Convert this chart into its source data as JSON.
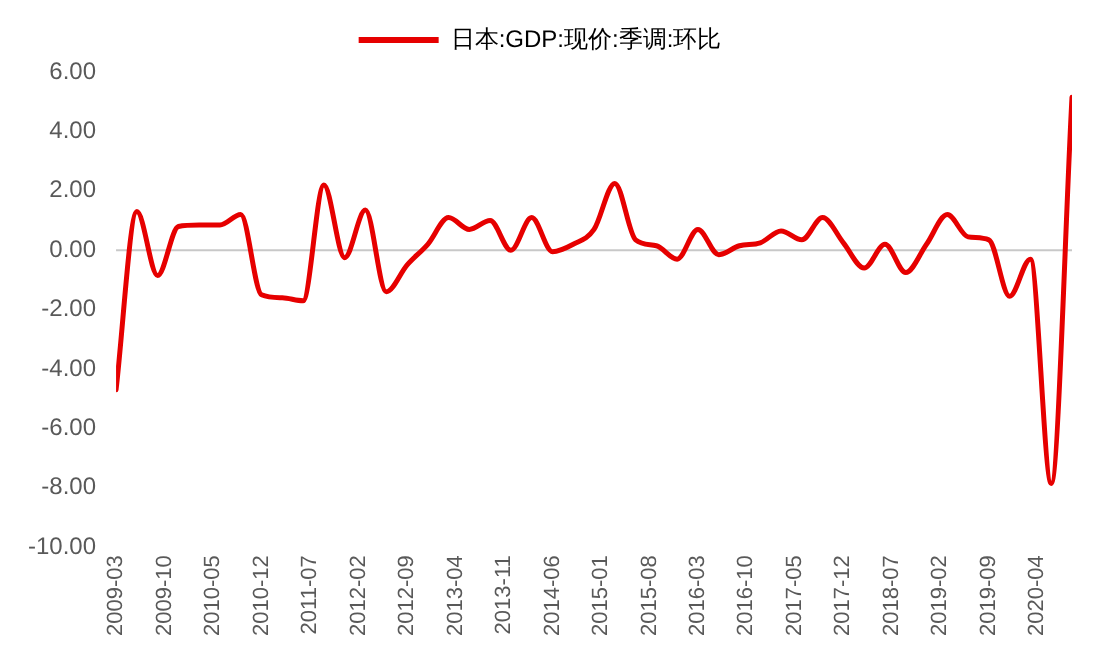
{
  "chart_data": {
    "type": "line",
    "legend": "top",
    "ref_lines": [
      {
        "axis": "y",
        "value": 0,
        "color": "#c8c8c8"
      }
    ],
    "grid": false,
    "marker": "none",
    "line_style": "solid",
    "x": [
      "2009-03",
      "2009-06",
      "2009-09",
      "2009-12",
      "2010-03",
      "2010-06",
      "2010-09",
      "2010-12",
      "2011-03",
      "2011-06",
      "2011-09",
      "2011-12",
      "2012-03",
      "2012-06",
      "2012-09",
      "2012-12",
      "2013-03",
      "2013-06",
      "2013-09",
      "2013-12",
      "2014-03",
      "2014-06",
      "2014-09",
      "2014-12",
      "2015-03",
      "2015-06",
      "2015-09",
      "2015-12",
      "2016-03",
      "2016-06",
      "2016-09",
      "2016-12",
      "2017-03",
      "2017-06",
      "2017-09",
      "2017-12",
      "2018-03",
      "2018-06",
      "2018-09",
      "2018-12",
      "2019-03",
      "2019-06",
      "2019-09",
      "2019-12",
      "2020-03",
      "2020-06",
      "2020-09"
    ],
    "series": [
      {
        "name": "日本:GDP:现价:季调:环比",
        "color": "#e60000",
        "values": [
          -4.7,
          1.3,
          -0.85,
          0.8,
          0.85,
          0.85,
          1.2,
          -1.5,
          -1.6,
          -1.7,
          2.2,
          -0.25,
          1.35,
          -1.4,
          -0.5,
          0.2,
          1.1,
          0.7,
          1.0,
          0.0,
          1.1,
          -0.05,
          0.2,
          0.7,
          2.25,
          0.35,
          0.15,
          -0.3,
          0.7,
          -0.15,
          0.15,
          0.25,
          0.65,
          0.35,
          1.1,
          0.25,
          -0.6,
          0.2,
          -0.75,
          0.2,
          1.2,
          0.45,
          0.35,
          -1.55,
          -0.3,
          -7.85,
          5.15
        ]
      }
    ],
    "xlim": [
      "2009-03",
      "2020-09"
    ],
    "xticks": [
      "2009-03",
      "2009-10",
      "2010-05",
      "2010-12",
      "2011-07",
      "2012-02",
      "2012-09",
      "2013-04",
      "2013-11",
      "2014-06",
      "2015-01",
      "2015-08",
      "2016-03",
      "2016-10",
      "2017-05",
      "2017-12",
      "2018-07",
      "2019-02",
      "2019-09",
      "2020-04"
    ],
    "ylim": [
      -10,
      6
    ],
    "yticks": [
      {
        "value": -10,
        "label": "-10.00"
      },
      {
        "value": -8,
        "label": "-8.00"
      },
      {
        "value": -6,
        "label": "-6.00"
      },
      {
        "value": -4,
        "label": "-4.00"
      },
      {
        "value": -2,
        "label": "-2.00"
      },
      {
        "value": 0,
        "label": "0.00"
      },
      {
        "value": 2,
        "label": "2.00"
      },
      {
        "value": 4,
        "label": "4.00"
      },
      {
        "value": 6,
        "label": "6.00"
      }
    ]
  }
}
